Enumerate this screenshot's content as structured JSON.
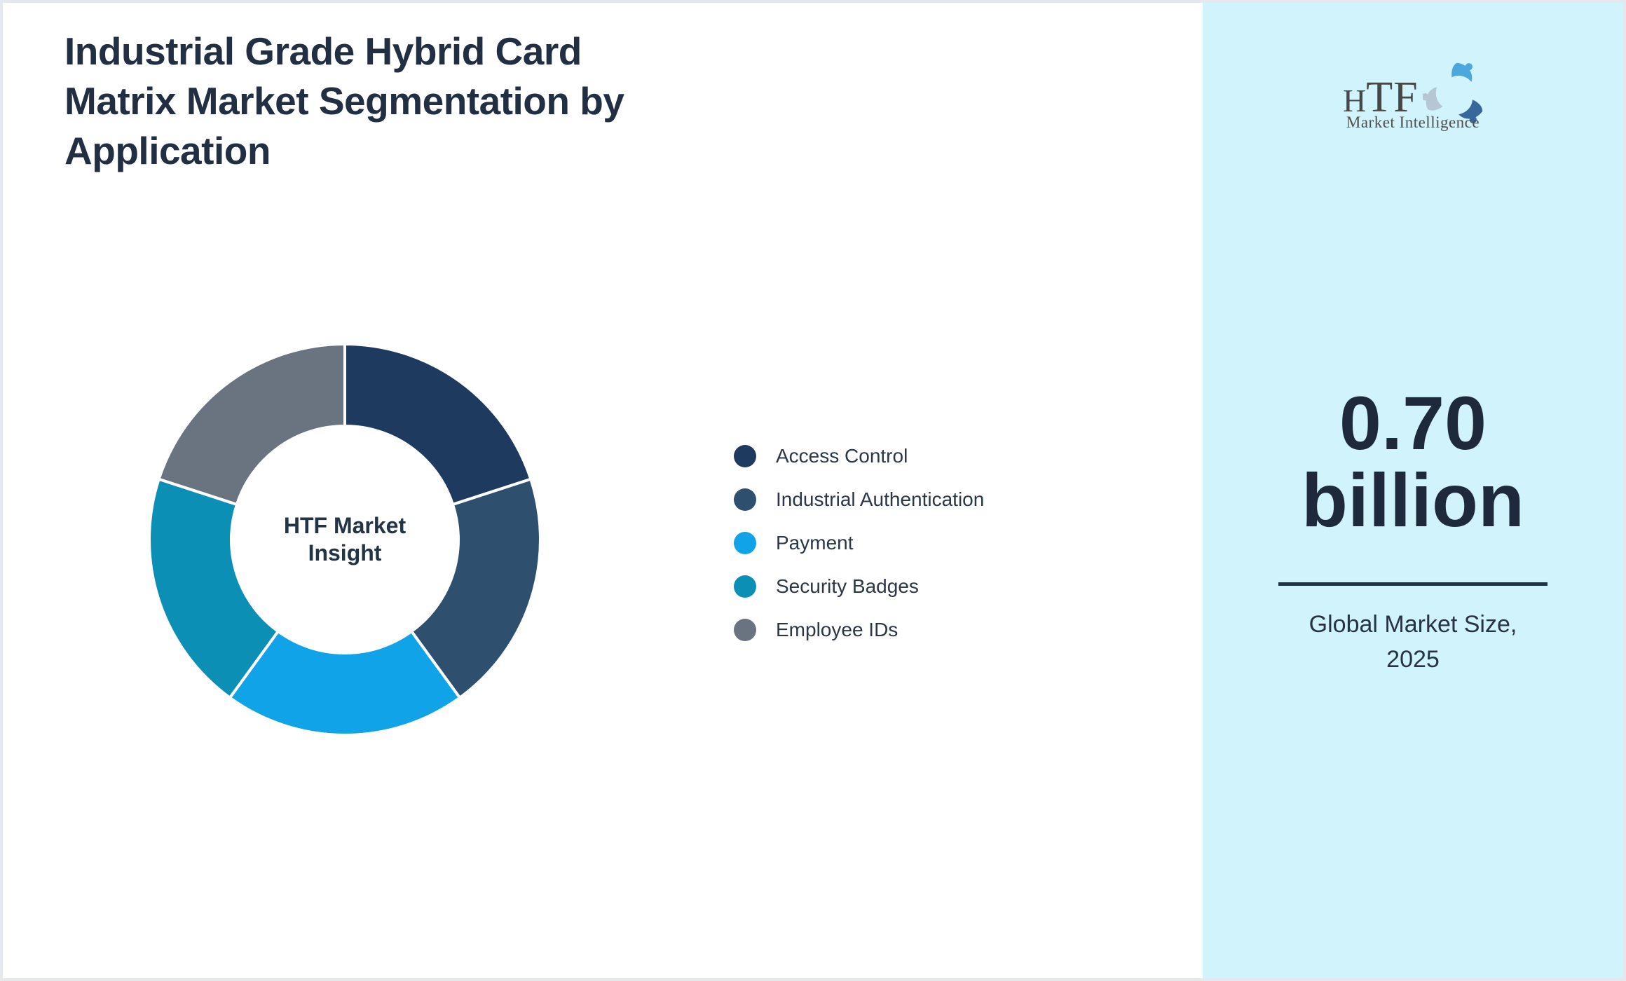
{
  "page": {
    "title": "Industrial Grade Hybrid Card\nMatrix Market Segmentation by\nApplication",
    "background": "#ffffff",
    "border_color": "#e5e8ec"
  },
  "chart_data": {
    "type": "pie",
    "subtype": "donut",
    "title": "Industrial Grade Hybrid Card Matrix Market Segmentation by Application",
    "center_label": "HTF Market\nInsight",
    "legend_position": "right",
    "direction": "clockwise",
    "start_angle_deg": 0,
    "inner_radius_ratio": 0.58,
    "separator_color": "#ffffff",
    "segments": [
      {
        "label": "Access Control",
        "value_pct": 20,
        "color": "#1f3a5f"
      },
      {
        "label": "Industrial Authentication",
        "value_pct": 20,
        "color": "#2f4f6f"
      },
      {
        "label": "Payment",
        "value_pct": 20,
        "color": "#11a3e8"
      },
      {
        "label": "Security Badges",
        "value_pct": 20,
        "color": "#0b8fb4"
      },
      {
        "label": "Employee IDs",
        "value_pct": 20,
        "color": "#6a7380"
      }
    ]
  },
  "sidebar": {
    "background": "#d1f3fb",
    "logo": {
      "text_h": "H",
      "text_tf": "TF",
      "tagline": "Market Intelligence",
      "swirl_colors": [
        "#4da7dd",
        "#37689b",
        "#b6c6d3"
      ]
    },
    "market_size_value": "0.70\nbillion",
    "market_size_caption": "Global Market Size,\n2025"
  }
}
